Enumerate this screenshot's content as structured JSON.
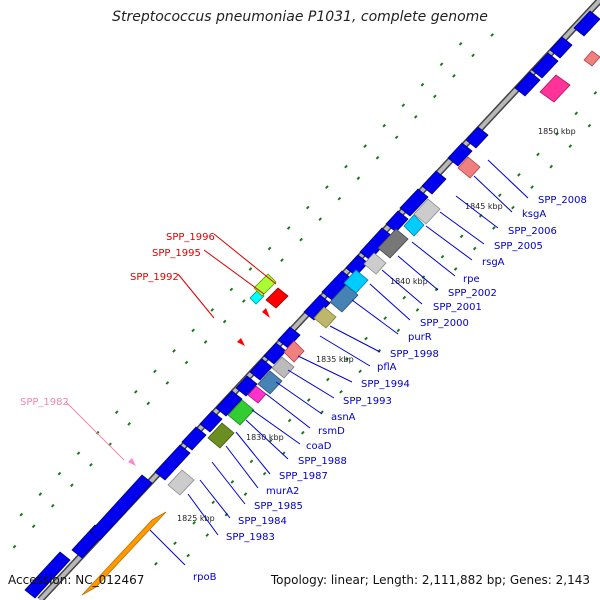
{
  "title": "Streptococcus pneumoniae P1031, complete genome",
  "footer": {
    "accession": "Accession: NC_012467",
    "summary": "Topology: linear; Length: 2,111,882 bp; Genes: 2,143"
  },
  "colors": {
    "backbone": "#9a9a9a",
    "forward_gene": "#0000ee",
    "label_blue": "#0000cc",
    "label_red": "#dd0000",
    "label_pink": "#ee88aa",
    "tick": "#1a7a1a"
  },
  "scale_labels": [
    {
      "text": "1825 kbp",
      "icon": "tick-label"
    },
    {
      "text": "1830 kbp"
    },
    {
      "text": "1835 kbp"
    },
    {
      "text": "1840 kbp"
    },
    {
      "text": "1845 kbp"
    },
    {
      "text": "1850 kbp"
    }
  ],
  "gene_labels": [
    {
      "text": "rpoB",
      "color": "blue"
    },
    {
      "text": "SPP_1983",
      "color": "blue"
    },
    {
      "text": "SPP_1984",
      "color": "blue"
    },
    {
      "text": "SPP_1985",
      "color": "blue"
    },
    {
      "text": "murA2",
      "color": "blue"
    },
    {
      "text": "SPP_1987",
      "color": "blue"
    },
    {
      "text": "SPP_1988",
      "color": "blue"
    },
    {
      "text": "coaD",
      "color": "blue"
    },
    {
      "text": "rsmD",
      "color": "blue"
    },
    {
      "text": "asnA",
      "color": "blue"
    },
    {
      "text": "SPP_1993",
      "color": "blue"
    },
    {
      "text": "SPP_1994",
      "color": "blue"
    },
    {
      "text": "SPP_1998",
      "color": "blue"
    },
    {
      "text": "pflA",
      "color": "blue"
    },
    {
      "text": "purR",
      "color": "blue"
    },
    {
      "text": "SPP_2000",
      "color": "blue"
    },
    {
      "text": "SPP_2001",
      "color": "blue"
    },
    {
      "text": "SPP_2002",
      "color": "blue"
    },
    {
      "text": "rpe",
      "color": "blue"
    },
    {
      "text": "rsgA",
      "color": "blue"
    },
    {
      "text": "SPP_2005",
      "color": "blue"
    },
    {
      "text": "SPP_2006",
      "color": "blue"
    },
    {
      "text": "ksgA",
      "color": "blue"
    },
    {
      "text": "SPP_2008",
      "color": "blue"
    },
    {
      "text": "SPP_1996",
      "color": "red"
    },
    {
      "text": "SPP_1995",
      "color": "red"
    },
    {
      "text": "SPP_1992",
      "color": "red"
    },
    {
      "text": "SPP_1982",
      "color": "pink"
    }
  ]
}
